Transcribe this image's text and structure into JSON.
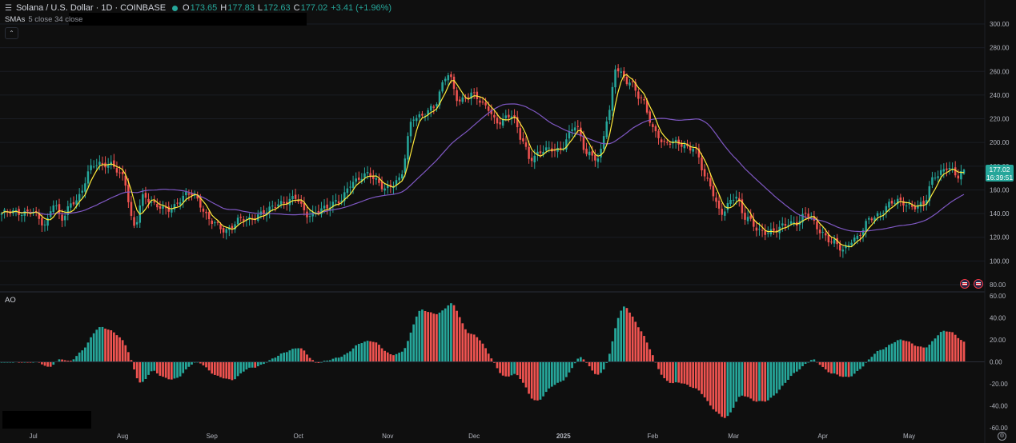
{
  "header": {
    "menu_icon": "hamburger-icon",
    "title": "Solana / U.S. Dollar · 1D · COINBASE",
    "ohlc": [
      {
        "k": "O",
        "v": "173.65"
      },
      {
        "k": "H",
        "v": "177.83"
      },
      {
        "k": "L",
        "v": "172.63"
      },
      {
        "k": "C",
        "v": "177.02"
      }
    ],
    "change": "+3.41 (+1.96%)"
  },
  "indicator_sma": {
    "label": "SMAs",
    "args": "5 close 34 close"
  },
  "indicator_ao": {
    "label": "AO"
  },
  "price_tag": {
    "price": "177.02",
    "countdown": "16:39:51"
  },
  "colors": {
    "up": "#26a69a",
    "down": "#ef5350",
    "sma_fast": "#ffeb3b",
    "sma_slow": "#7e57c2",
    "background": "#0f0f0f"
  },
  "chart_data": [
    {
      "type": "candlestick",
      "title": "Solana / U.S. Dollar · 1D · COINBASE",
      "ylim": [
        80,
        300
      ],
      "y_ticks": [
        "300.00",
        "280.00",
        "260.00",
        "240.00",
        "220.00",
        "200.00",
        "180.00",
        "160.00",
        "140.00",
        "120.00",
        "100.00",
        "80.00"
      ],
      "x_ticks": [
        "Jul",
        "Aug",
        "Sep",
        "Oct",
        "Nov",
        "Dec",
        "2025",
        "Feb",
        "Mar",
        "Apr",
        "May"
      ],
      "x_tick_dates": [
        "2024-07-01",
        "2024-08-01",
        "2024-09-01",
        "2024-10-01",
        "2024-11-01",
        "2024-12-01",
        "2025-01-01",
        "2025-02-01",
        "2025-03-01",
        "2025-04-01",
        "2025-05-01"
      ],
      "date_range": [
        "2024-06-20",
        "2025-05-20"
      ],
      "close_anchors": [
        [
          "2024-06-20",
          140
        ],
        [
          "2024-06-30",
          142
        ],
        [
          "2024-07-05",
          130
        ],
        [
          "2024-07-08",
          150
        ],
        [
          "2024-07-11",
          135
        ],
        [
          "2024-07-15",
          150
        ],
        [
          "2024-07-22",
          180
        ],
        [
          "2024-07-28",
          183
        ],
        [
          "2024-08-01",
          170
        ],
        [
          "2024-08-05",
          130
        ],
        [
          "2024-08-08",
          155
        ],
        [
          "2024-08-12",
          146
        ],
        [
          "2024-08-18",
          145
        ],
        [
          "2024-08-25",
          158
        ],
        [
          "2024-09-01",
          132
        ],
        [
          "2024-09-06",
          127
        ],
        [
          "2024-09-12",
          135
        ],
        [
          "2024-09-19",
          140
        ],
        [
          "2024-09-25",
          150
        ],
        [
          "2024-09-30",
          152
        ],
        [
          "2024-10-04",
          140
        ],
        [
          "2024-10-10",
          143
        ],
        [
          "2024-10-15",
          152
        ],
        [
          "2024-10-20",
          165
        ],
        [
          "2024-10-25",
          175
        ],
        [
          "2024-10-31",
          160
        ],
        [
          "2024-11-05",
          170
        ],
        [
          "2024-11-10",
          220
        ],
        [
          "2024-11-17",
          230
        ],
        [
          "2024-11-22",
          258
        ],
        [
          "2024-11-26",
          235
        ],
        [
          "2024-12-01",
          240
        ],
        [
          "2024-12-05",
          232
        ],
        [
          "2024-12-09",
          215
        ],
        [
          "2024-12-14",
          225
        ],
        [
          "2024-12-18",
          200
        ],
        [
          "2024-12-20",
          185
        ],
        [
          "2024-12-25",
          195
        ],
        [
          "2024-12-30",
          192
        ],
        [
          "2025-01-05",
          215
        ],
        [
          "2025-01-09",
          190
        ],
        [
          "2025-01-13",
          188
        ],
        [
          "2025-01-17",
          225
        ],
        [
          "2025-01-19",
          262
        ],
        [
          "2025-01-24",
          252
        ],
        [
          "2025-01-28",
          235
        ],
        [
          "2025-02-02",
          210
        ],
        [
          "2025-02-05",
          198
        ],
        [
          "2025-02-10",
          200
        ],
        [
          "2025-02-15",
          195
        ],
        [
          "2025-02-20",
          168
        ],
        [
          "2025-02-25",
          140
        ],
        [
          "2025-03-02",
          155
        ],
        [
          "2025-03-05",
          138
        ],
        [
          "2025-03-10",
          124
        ],
        [
          "2025-03-16",
          127
        ],
        [
          "2025-03-22",
          132
        ],
        [
          "2025-03-26",
          140
        ],
        [
          "2025-03-31",
          125
        ],
        [
          "2025-04-04",
          118
        ],
        [
          "2025-04-08",
          108
        ],
        [
          "2025-04-12",
          120
        ],
        [
          "2025-04-18",
          135
        ],
        [
          "2025-04-25",
          150
        ],
        [
          "2025-05-01",
          147
        ],
        [
          "2025-05-06",
          148
        ],
        [
          "2025-05-10",
          172
        ],
        [
          "2025-05-14",
          180
        ],
        [
          "2025-05-18",
          170
        ],
        [
          "2025-05-20",
          177.02
        ]
      ],
      "series": [
        {
          "name": "SMA 5",
          "color": "#ffeb3b"
        },
        {
          "name": "SMA 34",
          "color": "#7e57c2"
        }
      ],
      "last": {
        "open": 173.65,
        "high": 177.83,
        "low": 172.63,
        "close": 177.02
      }
    },
    {
      "type": "bar",
      "title": "AO",
      "ylim": [
        -60,
        60
      ],
      "y_ticks": [
        "60.00",
        "40.00",
        "20.00",
        "0.00",
        "-20.00",
        "-40.00",
        "-60.00"
      ],
      "up_color": "#26a69a",
      "down_color": "#ef5350"
    }
  ]
}
